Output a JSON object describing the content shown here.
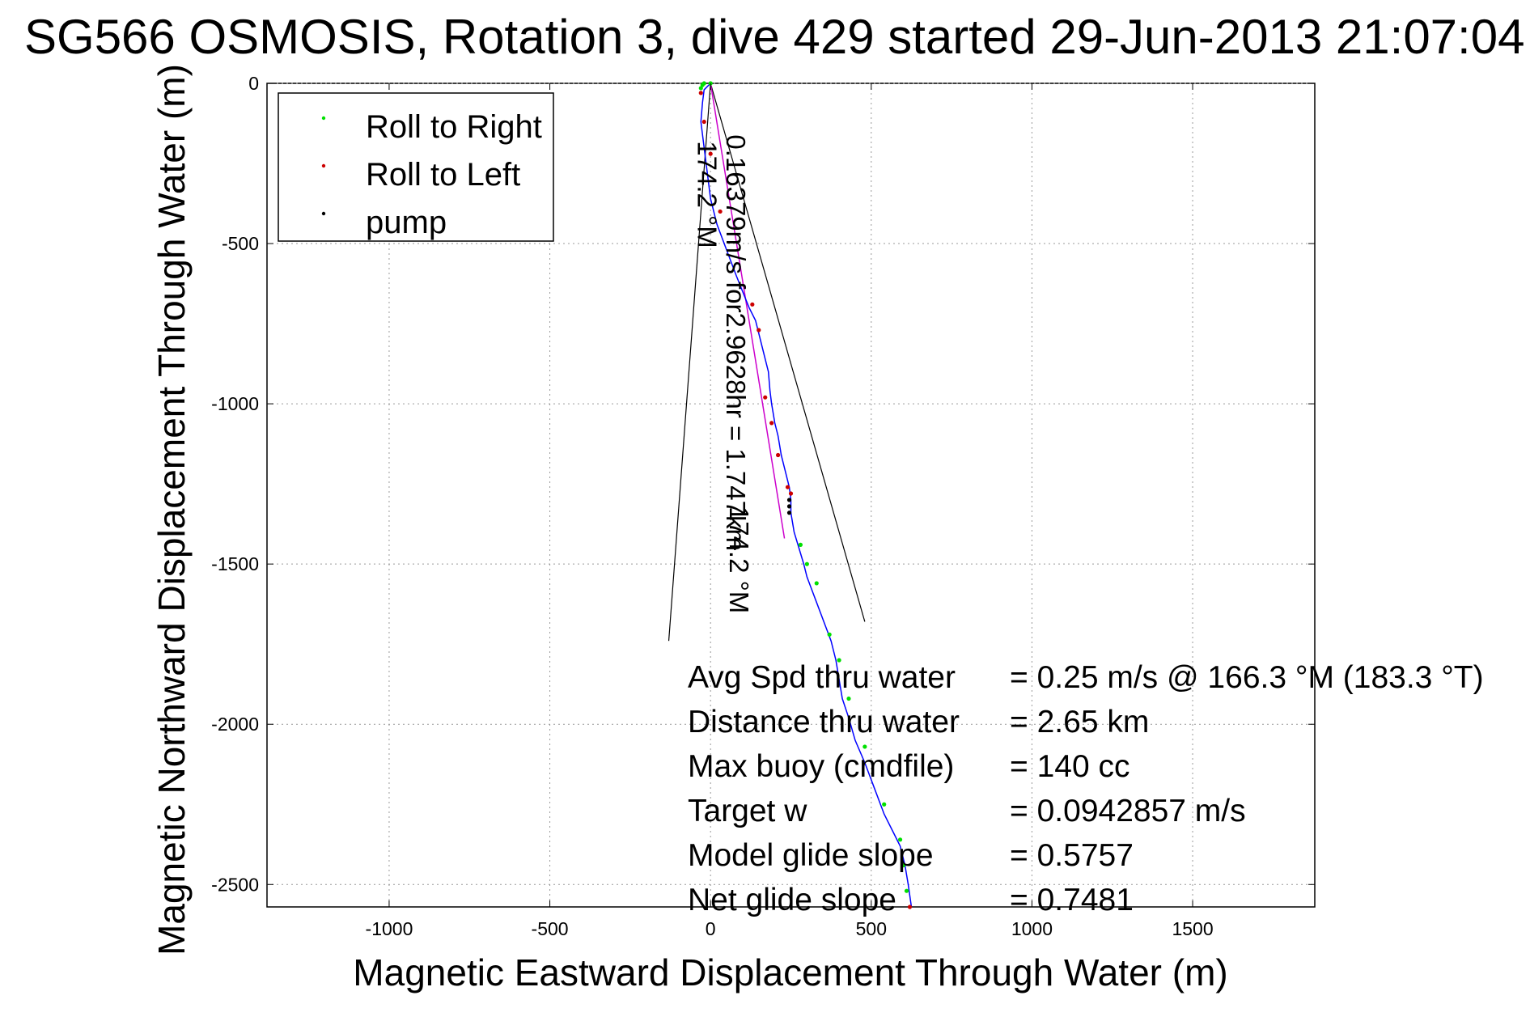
{
  "chart_data": {
    "type": "scatter",
    "title": "SG566 OSMOSIS, Rotation 3, dive 429 started 29-Jun-2013 21:07:04",
    "xlabel": "Magnetic Eastward Displacement Through Water (m)",
    "ylabel": "Magnetic Northward Displacement Through Water (m)",
    "xlim": [
      -1380,
      1880
    ],
    "ylim": [
      -2570,
      0
    ],
    "xticks": [
      -1000,
      -500,
      0,
      500,
      1000,
      1500
    ],
    "yticks": [
      0,
      -500,
      -1000,
      -1500,
      -2000,
      -2500
    ],
    "grid": true,
    "legend_position": "top-left",
    "track": {
      "x": [
        0,
        -10,
        -20,
        -25,
        -30,
        -20,
        -10,
        0,
        20,
        50,
        80,
        100,
        120,
        140,
        150,
        160,
        170,
        180,
        185,
        190,
        200,
        210,
        220,
        230,
        245,
        250,
        250,
        260,
        275,
        290,
        300,
        315,
        330,
        345,
        360,
        375,
        390,
        400,
        410,
        430,
        450,
        480,
        510,
        540,
        570,
        590,
        605,
        615,
        625
      ],
      "y": [
        0,
        -10,
        -20,
        -60,
        -120,
        -200,
        -280,
        -360,
        -440,
        -520,
        -600,
        -650,
        -700,
        -740,
        -780,
        -820,
        -860,
        -900,
        -960,
        -1000,
        -1060,
        -1100,
        -1160,
        -1200,
        -1260,
        -1300,
        -1340,
        -1400,
        -1450,
        -1500,
        -1540,
        -1580,
        -1620,
        -1660,
        -1700,
        -1740,
        -1800,
        -1860,
        -1920,
        -1980,
        -2050,
        -2120,
        -2200,
        -2280,
        -2340,
        -2380,
        -2440,
        -2500,
        -2570
      ]
    },
    "series": [
      {
        "name": "Roll to Right",
        "color": "#00e000",
        "x": [
          -30,
          -25,
          -20,
          0,
          280,
          300,
          330,
          370,
          400,
          430,
          480,
          540,
          590,
          600,
          610
        ],
        "y": [
          -15,
          -5,
          0,
          0,
          -1440,
          -1500,
          -1560,
          -1720,
          -1800,
          -1920,
          -2070,
          -2250,
          -2360,
          -2440,
          -2520
        ]
      },
      {
        "name": "Roll to Left",
        "color": "#cc0000",
        "x": [
          -30,
          -20,
          0,
          30,
          130,
          150,
          170,
          190,
          210,
          240,
          250,
          620
        ],
        "y": [
          -30,
          -120,
          -220,
          -400,
          -690,
          -770,
          -980,
          -1060,
          -1160,
          -1260,
          -1280,
          -2570
        ]
      },
      {
        "name": "pump",
        "color": "#000000",
        "x": [
          245,
          245,
          245
        ],
        "y": [
          -1300,
          -1320,
          -1340
        ]
      }
    ],
    "magenta_line": {
      "x": [
        0,
        230
      ],
      "y": [
        0,
        -1420
      ]
    },
    "cone_lines": [
      {
        "x": [
          0,
          -130
        ],
        "y": [
          0,
          -1740
        ]
      },
      {
        "x": [
          0,
          480
        ],
        "y": [
          0,
          -1680
        ]
      }
    ],
    "annotations": [
      {
        "text": "174.2 °M",
        "x": -40,
        "y": -180,
        "rotation": 90
      },
      {
        "text": "0.16379m/s for2.9628hr = 1.747km",
        "x": 50,
        "y": -160,
        "rotation": 90
      },
      {
        "text": "174.2 °M",
        "x": 60,
        "y": -1320,
        "rotation": 90
      }
    ],
    "stats": [
      {
        "label": "Avg Spd thru water",
        "value": "=  0.25 m/s @ 166.3 °M (183.3 °T)"
      },
      {
        "label": "Distance thru water",
        "value": "=  2.65 km"
      },
      {
        "label": "Max buoy (cmdfile)",
        "value": "= 140 cc"
      },
      {
        "label": "Target w",
        "value": "= 0.0942857 m/s"
      },
      {
        "label": "Model glide slope",
        "value": "= 0.5757"
      },
      {
        "label": "Net glide slope",
        "value": "= 0.7481"
      }
    ]
  },
  "colors": {
    "track_line": "#0000ff",
    "magenta_line": "#cc00cc",
    "roll_right": "#00e000",
    "roll_left": "#cc0000",
    "pump": "#000000"
  }
}
